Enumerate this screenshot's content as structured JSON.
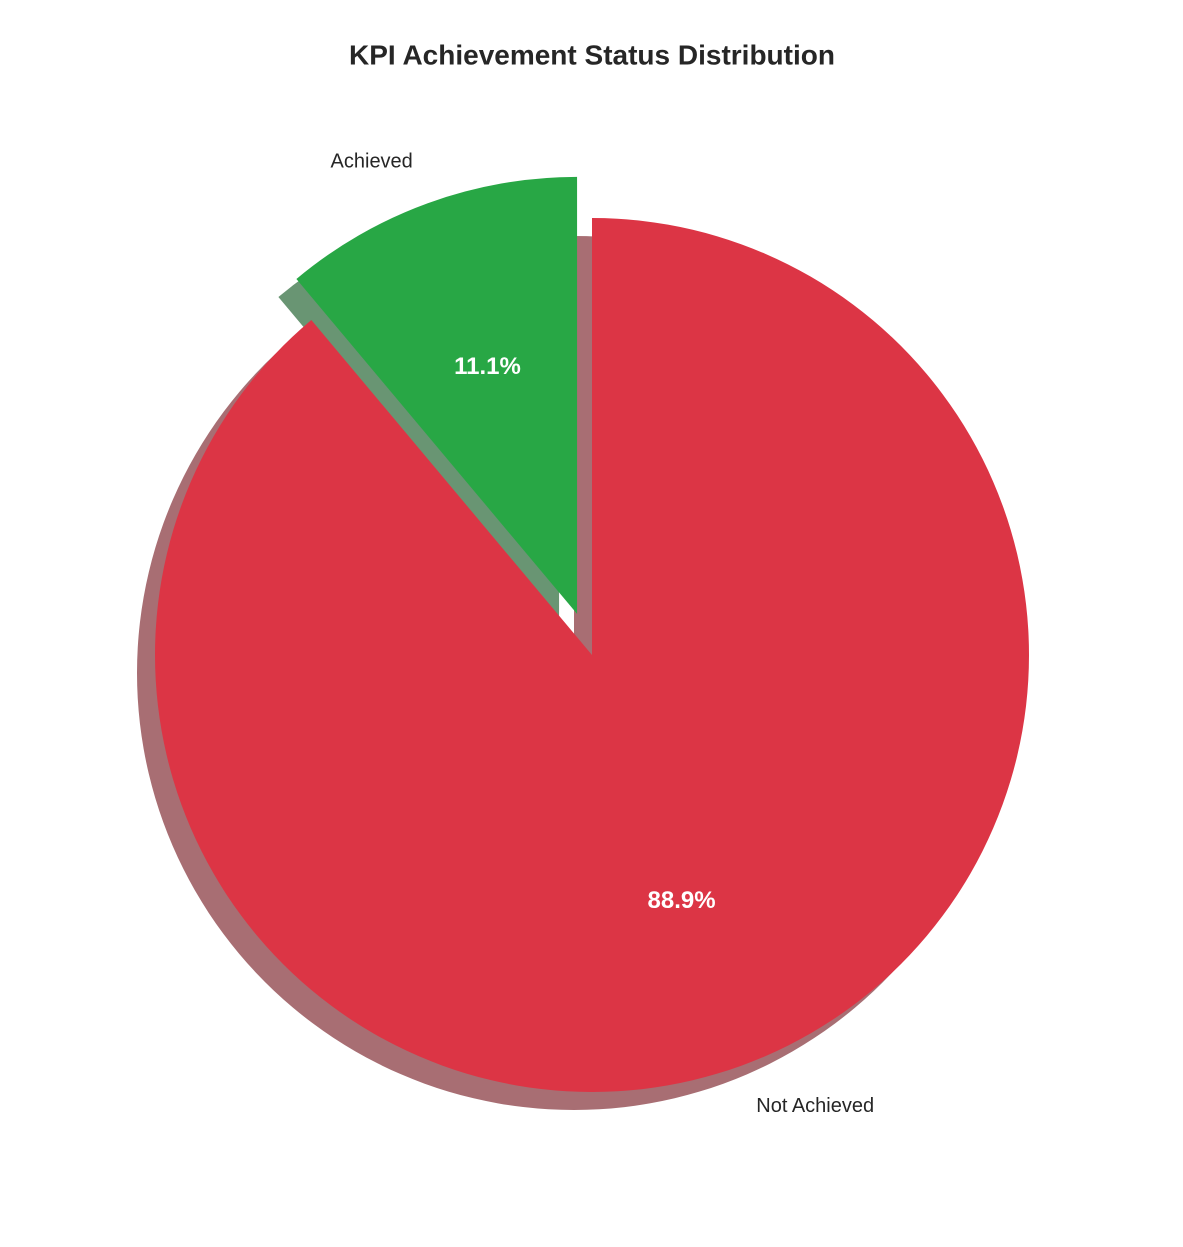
{
  "chart_data": {
    "type": "pie",
    "title": "KPI Achievement Status Distribution",
    "categories": [
      "Achieved",
      "Not Achieved"
    ],
    "values": [
      11.1,
      88.9
    ],
    "value_labels": [
      "11.1%",
      "88.9%"
    ],
    "colors": [
      "#28a745",
      "#dc3545"
    ],
    "explode": [
      0.1,
      0
    ],
    "start_angle": 90,
    "shadow": true
  }
}
